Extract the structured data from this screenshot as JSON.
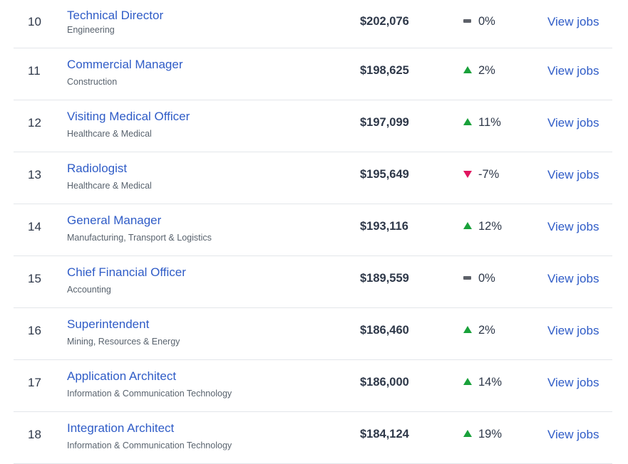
{
  "rows": [
    {
      "rank": "10",
      "title": "Technical Director",
      "industry": "Engineering",
      "salary": "$202,076",
      "trend": "flat",
      "change": "0%",
      "action": "View jobs"
    },
    {
      "rank": "11",
      "title": "Commercial Manager",
      "industry": "Construction",
      "salary": "$198,625",
      "trend": "up",
      "change": "2%",
      "action": "View jobs"
    },
    {
      "rank": "12",
      "title": "Visiting Medical Officer",
      "industry": "Healthcare & Medical",
      "salary": "$197,099",
      "trend": "up",
      "change": "11%",
      "action": "View jobs"
    },
    {
      "rank": "13",
      "title": "Radiologist",
      "industry": "Healthcare & Medical",
      "salary": "$195,649",
      "trend": "down",
      "change": "-7%",
      "action": "View jobs"
    },
    {
      "rank": "14",
      "title": "General Manager",
      "industry": "Manufacturing, Transport & Logistics",
      "salary": "$193,116",
      "trend": "up",
      "change": "12%",
      "action": "View jobs"
    },
    {
      "rank": "15",
      "title": "Chief Financial Officer",
      "industry": "Accounting",
      "salary": "$189,559",
      "trend": "flat",
      "change": "0%",
      "action": "View jobs"
    },
    {
      "rank": "16",
      "title": "Superintendent",
      "industry": "Mining, Resources & Energy",
      "salary": "$186,460",
      "trend": "up",
      "change": "2%",
      "action": "View jobs"
    },
    {
      "rank": "17",
      "title": "Application Architect",
      "industry": "Information & Communication Technology",
      "salary": "$186,000",
      "trend": "up",
      "change": "14%",
      "action": "View jobs"
    },
    {
      "rank": "18",
      "title": "Integration Architect",
      "industry": "Information & Communication Technology",
      "salary": "$184,124",
      "trend": "up",
      "change": "19%",
      "action": "View jobs"
    }
  ],
  "colors": {
    "link": "#2f5cc7",
    "up": "#19a13a",
    "down": "#e0165f",
    "flat": "#5d6169"
  },
  "icons": {
    "up": "trend-up-icon",
    "down": "trend-down-icon",
    "flat": "trend-flat-icon"
  }
}
